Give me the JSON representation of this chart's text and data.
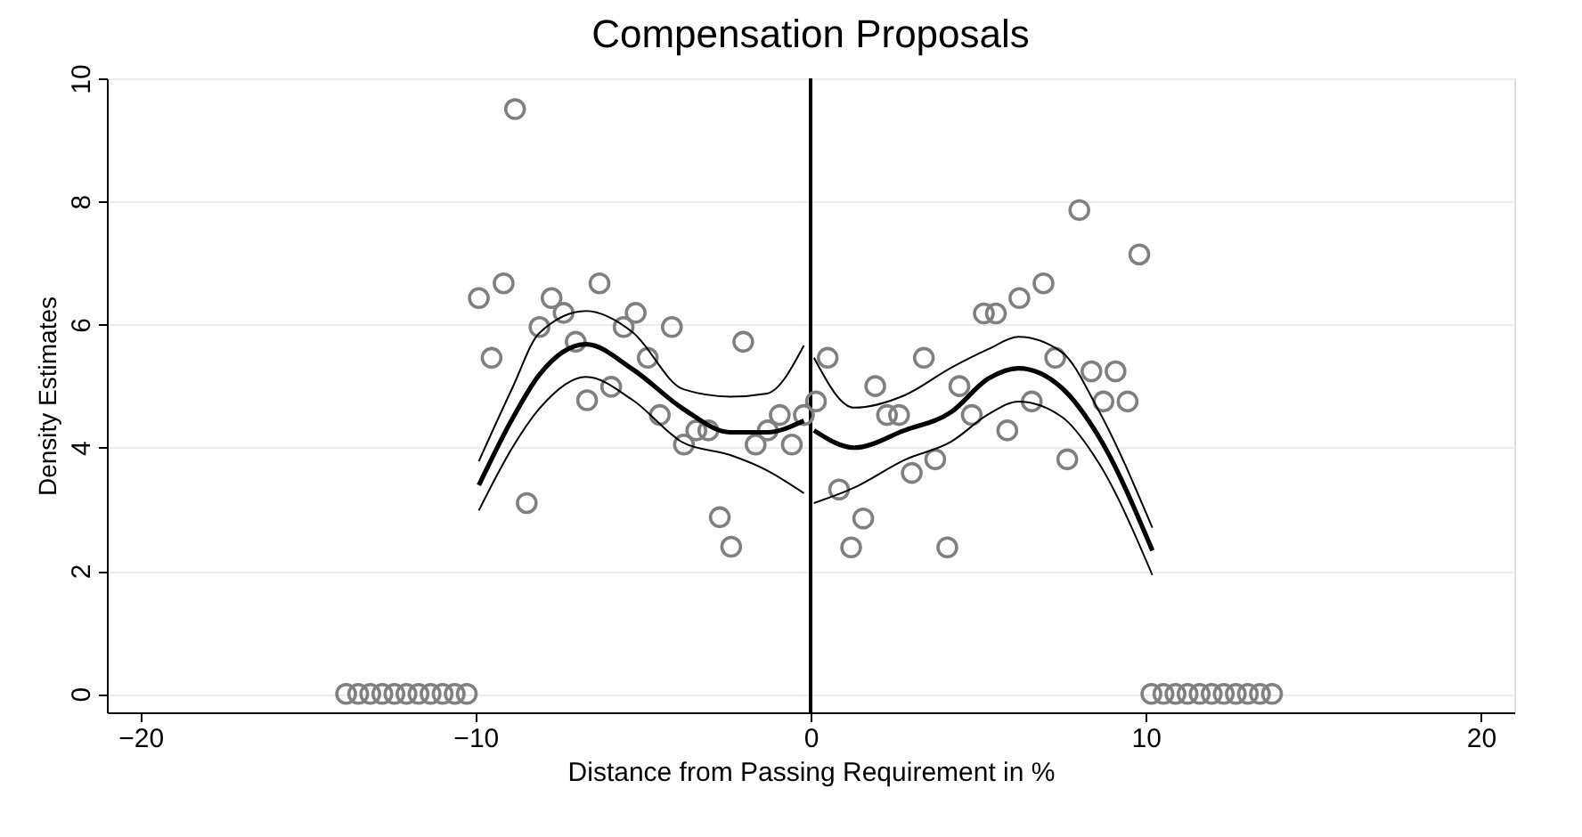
{
  "chart_data": {
    "type": "scatter",
    "title": "Compensation Proposals",
    "xlabel": "Distance from Passing Requirement in %",
    "ylabel": "Density Estimates",
    "xlim": [
      -21,
      21
    ],
    "xticks": [
      -20,
      -10,
      0,
      10,
      20
    ],
    "ylim": [
      -0.3,
      10
    ],
    "yticks": [
      0,
      2,
      4,
      6,
      8,
      10
    ],
    "grid": "y",
    "marker": "circle",
    "series": [
      {
        "color": "#808080",
        "x": [
          -13.86,
          -13.5,
          -13.14,
          -12.78,
          -12.42,
          -12.06,
          -11.7,
          -11.34,
          -10.98,
          -10.62,
          -10.26,
          -9.9,
          -9.52,
          -9.16,
          -8.82,
          -8.47,
          -8.09,
          -7.73,
          -7.37,
          -7.01,
          -6.67,
          -6.3,
          -5.95,
          -5.58,
          -5.22,
          -4.86,
          -4.5,
          -4.14,
          -3.78,
          -3.41,
          -3.05,
          -2.71,
          -2.37,
          -2.01,
          -1.64,
          -1.28,
          -0.92,
          -0.56,
          -0.2,
          0.16,
          0.51,
          0.85,
          1.21,
          1.57,
          1.93,
          2.28,
          2.64,
          3.02,
          3.38,
          3.72,
          4.08,
          4.44,
          4.81,
          5.17,
          5.53,
          5.87,
          6.23,
          6.6,
          6.95,
          7.3,
          7.66,
          8.02,
          8.38,
          8.74,
          9.1,
          9.46,
          9.81,
          10.17,
          10.53,
          10.89,
          11.25,
          11.61,
          11.97,
          12.33,
          12.69,
          13.05,
          13.41,
          13.77
        ],
        "values": [
          0,
          0,
          0,
          0,
          0,
          0,
          0,
          0,
          0,
          0,
          0,
          6.43,
          5.46,
          6.67,
          9.5,
          3.1,
          5.96,
          6.43,
          6.19,
          5.72,
          4.77,
          6.67,
          4.99,
          5.96,
          6.19,
          5.46,
          4.53,
          5.96,
          4.05,
          4.28,
          4.28,
          2.87,
          2.39,
          5.72,
          4.05,
          4.28,
          4.53,
          4.05,
          4.53,
          4.75,
          5.46,
          3.32,
          2.38,
          2.85,
          5.0,
          4.53,
          4.53,
          3.59,
          5.46,
          3.81,
          2.38,
          5.0,
          4.53,
          6.18,
          6.18,
          4.28,
          6.43,
          4.75,
          6.67,
          5.46,
          3.81,
          7.86,
          5.24,
          4.75,
          5.24,
          4.75,
          7.14,
          0,
          0,
          0,
          0,
          0,
          0,
          0,
          0,
          0,
          0,
          0
        ]
      },
      {
        "type": "line",
        "color": "#000000",
        "marker": "none",
        "x": [
          -9.9,
          -8.9,
          -8.1,
          -6.7,
          -5.3,
          -3.8,
          -2.4,
          -1.3,
          -0.2
        ],
        "values": [
          3.39,
          4.47,
          5.18,
          5.68,
          5.27,
          4.63,
          4.25,
          4.25,
          4.44
        ]
      },
      {
        "type": "line",
        "color": "#000000",
        "marker": "none",
        "x": [
          0.1,
          1.3,
          2.8,
          4.2,
          5.3,
          6.2,
          7.5,
          8.6,
          10.2
        ],
        "values": [
          4.28,
          4.0,
          4.28,
          4.58,
          5.12,
          5.29,
          4.97,
          4.18,
          2.33
        ]
      },
      {
        "type": "line",
        "color": "#000000",
        "marker": "none",
        "x": [
          -9.9,
          -8.9,
          -8.1,
          -6.7,
          -5.3,
          -3.8,
          -2.4,
          -1.3,
          -0.2
        ],
        "values": [
          3.78,
          4.97,
          5.86,
          6.22,
          5.87,
          4.95,
          4.83,
          4.88,
          5.66
        ]
      },
      {
        "type": "line",
        "color": "#000000",
        "marker": "none",
        "x": [
          -9.9,
          -8.9,
          -8.1,
          -6.7,
          -5.3,
          -3.8,
          -2.4,
          -1.3,
          -0.2
        ],
        "values": [
          2.98,
          4.0,
          4.63,
          5.15,
          4.77,
          4.08,
          3.88,
          3.63,
          3.26
        ]
      },
      {
        "type": "line",
        "color": "#000000",
        "marker": "none",
        "x": [
          0.1,
          1.3,
          2.8,
          4.2,
          5.3,
          6.2,
          7.5,
          8.6,
          10.2
        ],
        "values": [
          5.46,
          4.65,
          4.85,
          5.3,
          5.6,
          5.8,
          5.55,
          4.6,
          2.7
        ]
      },
      {
        "type": "line",
        "color": "#000000",
        "marker": "none",
        "x": [
          0.1,
          1.3,
          2.8,
          4.2,
          5.3,
          6.2,
          7.5,
          8.6,
          10.2
        ],
        "values": [
          3.1,
          3.35,
          3.8,
          4.1,
          4.54,
          4.75,
          4.5,
          3.75,
          1.93
        ]
      }
    ],
    "ref_lines": [
      {
        "axis": "x",
        "value": 0,
        "color": "#000000"
      }
    ]
  }
}
